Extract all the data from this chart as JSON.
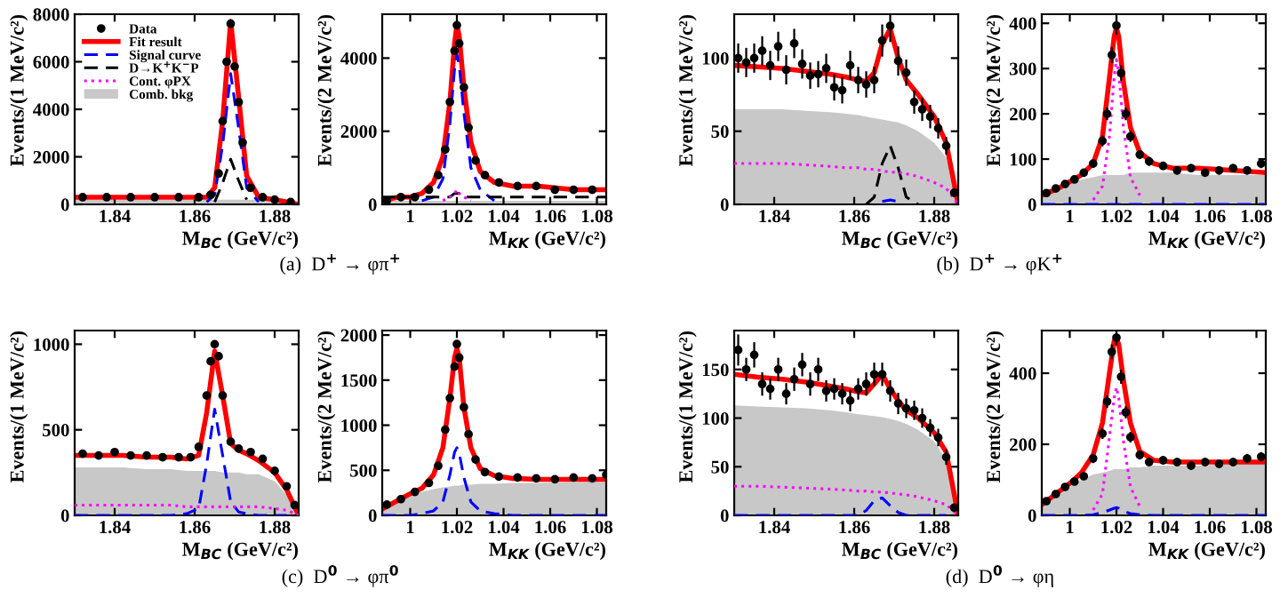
{
  "chart_data": [
    {
      "type": "line",
      "xlabel": "M$_{BC}$ (GeV/c²)",
      "ylabel": "Events/(1 MeV/c²)",
      "xlim": [
        1.83,
        1.886
      ],
      "xticks": [
        1.84,
        1.86,
        1.88
      ],
      "ylim": [
        0,
        8000
      ],
      "yticks": [
        0,
        2000,
        4000,
        6000,
        8000
      ],
      "legend": "top left",
      "annotations": [
        "(a)  D$^{+}$ → φπ$^{+}$"
      ],
      "x": [
        1.83,
        1.836,
        1.842,
        1.848,
        1.854,
        1.858,
        1.861,
        1.863,
        1.865,
        1.867,
        1.869,
        1.871,
        1.873,
        1.876,
        1.88,
        1.883,
        1.886
      ],
      "series": [
        {
          "name": "Data",
          "type": "scatter",
          "marker": "circle",
          "color": "#000000",
          "x": [
            1.832,
            1.838,
            1.844,
            1.85,
            1.856,
            1.861,
            1.864,
            1.866,
            1.867,
            1.868,
            1.869,
            1.87,
            1.871,
            1.872,
            1.874,
            1.877,
            1.88,
            1.884
          ],
          "values": [
            300,
            300,
            300,
            300,
            300,
            300,
            400,
            1300,
            3500,
            6000,
            7600,
            5800,
            4300,
            2600,
            700,
            300,
            200,
            100
          ]
        },
        {
          "name": "Fit result",
          "color": "#ff0000",
          "line_style": "solid",
          "values": [
            300,
            300,
            300,
            300,
            300,
            300,
            300,
            300,
            700,
            3500,
            7700,
            4500,
            1200,
            300,
            200,
            100,
            0
          ]
        },
        {
          "name": "Signal curve",
          "color": "#0000ff",
          "line_style": "dashed",
          "values": [
            null,
            null,
            null,
            null,
            null,
            null,
            null,
            100,
            400,
            2500,
            5500,
            3200,
            700,
            100,
            null,
            null,
            null
          ]
        },
        {
          "name": "D→K$^{+}$K$^{−}$P",
          "color": "#000000",
          "line_style": "dashed",
          "values": [
            null,
            null,
            null,
            null,
            null,
            null,
            null,
            null,
            100,
            900,
            1900,
            1000,
            200,
            null,
            null,
            null,
            null
          ]
        },
        {
          "name": "Cont. φPX",
          "color": "#ff00ff",
          "line_style": "dotted",
          "values": [
            null,
            null,
            null,
            null,
            null,
            null,
            null,
            null,
            null,
            null,
            null,
            null,
            null,
            null,
            null,
            null,
            null
          ]
        },
        {
          "name": "Comb. bkg",
          "type": "area",
          "color": "#c8c8c8",
          "values": [
            200,
            200,
            200,
            200,
            200,
            200,
            200,
            200,
            200,
            200,
            200,
            200,
            200,
            200,
            100,
            100,
            0
          ]
        }
      ]
    },
    {
      "type": "line",
      "xlabel": "M$_{KK}$ (GeV/c²)",
      "ylabel": "Events/(2 MeV/c²)",
      "xlim": [
        0.988,
        1.084
      ],
      "xticks": [
        1,
        1.02,
        1.04,
        1.06,
        1.08
      ],
      "ylim": [
        0,
        5200
      ],
      "yticks": [
        0,
        2000,
        4000
      ],
      "x": [
        0.988,
        0.995,
        1.0,
        1.005,
        1.01,
        1.014,
        1.017,
        1.019,
        1.02,
        1.021,
        1.023,
        1.026,
        1.03,
        1.036,
        1.044,
        1.055,
        1.07,
        1.084
      ],
      "series": [
        {
          "type": "scatter",
          "marker": "circle",
          "color": "#000000",
          "x": [
            0.99,
            0.996,
            1.002,
            1.008,
            1.012,
            1.015,
            1.017,
            1.019,
            1.02,
            1.021,
            1.023,
            1.025,
            1.028,
            1.032,
            1.038,
            1.046,
            1.054,
            1.062,
            1.07,
            1.078
          ],
          "values": [
            100,
            200,
            200,
            400,
            800,
            1500,
            2800,
            4200,
            4900,
            4400,
            3200,
            2100,
            1200,
            800,
            600,
            500,
            500,
            400,
            400,
            400
          ]
        },
        {
          "color": "#ff0000",
          "line_style": "solid",
          "values": [
            100,
            200,
            200,
            300,
            600,
            1300,
            2800,
            4400,
            4900,
            4600,
            3200,
            1700,
            900,
            600,
            500,
            500,
            400,
            400
          ]
        },
        {
          "color": "#0000ff",
          "line_style": "dashed",
          "values": [
            null,
            null,
            null,
            100,
            200,
            700,
            2200,
            3700,
            4100,
            3800,
            2500,
            1000,
            400,
            100,
            null,
            null,
            null,
            null
          ]
        },
        {
          "color": "#000000",
          "line_style": "dashed",
          "values": [
            200,
            200,
            200,
            200,
            200,
            200,
            200,
            300,
            300,
            300,
            200,
            200,
            200,
            200,
            200,
            200,
            200,
            200
          ]
        },
        {
          "color": "#ff00ff",
          "line_style": "dotted",
          "values": [
            null,
            null,
            null,
            null,
            null,
            100,
            200,
            300,
            400,
            300,
            200,
            100,
            null,
            null,
            null,
            null,
            null,
            null
          ]
        },
        {
          "type": "area",
          "color": "#c8c8c8",
          "values": [
            100,
            100,
            100,
            100,
            100,
            100,
            100,
            100,
            100,
            100,
            100,
            100,
            100,
            100,
            100,
            100,
            100,
            100
          ]
        }
      ]
    },
    {
      "type": "line",
      "xlabel": "M$_{BC}$ (GeV/c²)",
      "ylabel": "Events/(1 MeV/c²)",
      "xlim": [
        1.83,
        1.886
      ],
      "xticks": [
        1.84,
        1.86,
        1.88
      ],
      "ylim": [
        0,
        130
      ],
      "yticks": [
        0,
        50,
        100
      ],
      "annotations": [
        "(b)  D$^{+}$ → φK$^{+}$"
      ],
      "x": [
        1.83,
        1.836,
        1.842,
        1.848,
        1.854,
        1.858,
        1.861,
        1.863,
        1.865,
        1.867,
        1.869,
        1.871,
        1.873,
        1.876,
        1.88,
        1.883,
        1.886
      ],
      "series": [
        {
          "type": "scatter",
          "marker": "circle",
          "color": "#000000",
          "x": [
            1.831,
            1.833,
            1.835,
            1.837,
            1.839,
            1.841,
            1.843,
            1.845,
            1.847,
            1.849,
            1.851,
            1.853,
            1.855,
            1.857,
            1.859,
            1.861,
            1.863,
            1.865,
            1.867,
            1.869,
            1.871,
            1.873,
            1.875,
            1.877,
            1.879,
            1.881,
            1.883,
            1.885
          ],
          "values": [
            100,
            97,
            100,
            105,
            95,
            108,
            92,
            110,
            96,
            88,
            89,
            93,
            80,
            78,
            95,
            85,
            82,
            85,
            112,
            122,
            98,
            90,
            70,
            65,
            60,
            52,
            40,
            8
          ],
          "errors": [
            10,
            10,
            10,
            10,
            10,
            10,
            10,
            10,
            10,
            9,
            9,
            10,
            9,
            9,
            10,
            9,
            9,
            9,
            11,
            11,
            10,
            9,
            8,
            8,
            8,
            7,
            6,
            3
          ]
        },
        {
          "color": "#ff0000",
          "line_style": "solid",
          "values": [
            95,
            94,
            93,
            91,
            89,
            87,
            85,
            84,
            90,
            110,
            120,
            100,
            85,
            75,
            60,
            42,
            0
          ]
        },
        {
          "color": "#0000ff",
          "line_style": "dashed",
          "values": [
            null,
            null,
            null,
            null,
            null,
            null,
            null,
            null,
            null,
            2,
            3,
            2,
            null,
            null,
            null,
            null,
            null
          ]
        },
        {
          "color": "#000000",
          "line_style": "dashed",
          "values": [
            null,
            null,
            null,
            null,
            null,
            null,
            null,
            0,
            5,
            28,
            40,
            25,
            5,
            0,
            null,
            null,
            null
          ]
        },
        {
          "color": "#ff00ff",
          "line_style": "dotted",
          "values": [
            28,
            28,
            28,
            27,
            26,
            25,
            25,
            24,
            24,
            23,
            22,
            22,
            21,
            19,
            15,
            11,
            0
          ]
        },
        {
          "type": "area",
          "color": "#c8c8c8",
          "values": [
            65,
            65,
            65,
            64,
            63,
            62,
            61,
            60,
            59,
            58,
            57,
            56,
            54,
            50,
            42,
            32,
            0
          ]
        }
      ]
    },
    {
      "type": "line",
      "xlabel": "M$_{KK}$ (GeV/c²)",
      "ylabel": "Events/(2 MeV/c²)",
      "xlim": [
        0.988,
        1.084
      ],
      "xticks": [
        1,
        1.02,
        1.04,
        1.06,
        1.08
      ],
      "ylim": [
        0,
        420
      ],
      "yticks": [
        0,
        100,
        200,
        300,
        400
      ],
      "x": [
        0.988,
        0.995,
        1.0,
        1.005,
        1.01,
        1.014,
        1.017,
        1.019,
        1.02,
        1.021,
        1.023,
        1.026,
        1.03,
        1.036,
        1.044,
        1.055,
        1.07,
        1.084
      ],
      "series": [
        {
          "type": "scatter",
          "marker": "circle",
          "color": "#000000",
          "x": [
            0.99,
            0.994,
            0.998,
            1.002,
            1.006,
            1.01,
            1.014,
            1.016,
            1.018,
            1.02,
            1.022,
            1.024,
            1.026,
            1.03,
            1.034,
            1.04,
            1.046,
            1.052,
            1.058,
            1.064,
            1.07,
            1.076,
            1.082
          ],
          "values": [
            25,
            35,
            45,
            55,
            70,
            90,
            140,
            200,
            330,
            395,
            290,
            200,
            150,
            110,
            95,
            85,
            75,
            80,
            70,
            75,
            80,
            75,
            90
          ],
          "errors": [
            5,
            6,
            7,
            7,
            8,
            9,
            12,
            14,
            18,
            20,
            17,
            14,
            12,
            10,
            10,
            9,
            9,
            9,
            8,
            9,
            9,
            9,
            10
          ]
        },
        {
          "color": "#ff0000",
          "line_style": "solid",
          "values": [
            20,
            35,
            50,
            65,
            90,
            150,
            280,
            370,
            390,
            370,
            270,
            170,
            115,
            90,
            80,
            80,
            75,
            70
          ]
        },
        {
          "color": "#0000ff",
          "line_style": "dashed",
          "values": [
            0,
            0,
            0,
            0,
            0,
            0,
            0,
            0,
            0,
            0,
            0,
            0,
            0,
            0,
            0,
            0,
            0,
            0
          ]
        },
        {
          "color": "#ff00ff",
          "line_style": "dotted",
          "values": [
            null,
            null,
            null,
            null,
            10,
            40,
            150,
            280,
            320,
            290,
            170,
            60,
            20,
            null,
            null,
            null,
            null,
            null
          ]
        },
        {
          "type": "area",
          "color": "#c8c8c8",
          "values": [
            15,
            30,
            45,
            55,
            60,
            65,
            65,
            65,
            65,
            65,
            65,
            70,
            70,
            70,
            70,
            65,
            65,
            65
          ]
        }
      ]
    },
    {
      "type": "line",
      "xlabel": "M$_{BC}$ (GeV/c²)",
      "ylabel": "Events/(1 MeV/c²)",
      "xlim": [
        1.83,
        1.886
      ],
      "xticks": [
        1.84,
        1.86,
        1.88
      ],
      "ylim": [
        0,
        1080
      ],
      "yticks": [
        0,
        500,
        1000
      ],
      "annotations": [
        "(c)  D$^{0}$ → φπ$^{0}$"
      ],
      "x": [
        1.83,
        1.836,
        1.842,
        1.848,
        1.854,
        1.858,
        1.861,
        1.863,
        1.865,
        1.867,
        1.869,
        1.871,
        1.873,
        1.876,
        1.88,
        1.883,
        1.886
      ],
      "series": [
        {
          "type": "scatter",
          "marker": "circle",
          "color": "#000000",
          "x": [
            1.832,
            1.836,
            1.84,
            1.844,
            1.848,
            1.852,
            1.856,
            1.859,
            1.861,
            1.863,
            1.864,
            1.865,
            1.866,
            1.867,
            1.869,
            1.871,
            1.874,
            1.877,
            1.88,
            1.883,
            1.885
          ],
          "values": [
            360,
            350,
            370,
            350,
            350,
            340,
            340,
            340,
            400,
            700,
            900,
            1000,
            930,
            700,
            430,
            390,
            370,
            330,
            260,
            170,
            60
          ]
        },
        {
          "color": "#ff0000",
          "line_style": "solid",
          "values": [
            350,
            350,
            350,
            340,
            340,
            330,
            350,
            600,
            960,
            700,
            420,
            380,
            360,
            320,
            250,
            150,
            0
          ]
        },
        {
          "color": "#0000ff",
          "line_style": "dashed",
          "values": [
            0,
            0,
            0,
            0,
            0,
            10,
            40,
            300,
            620,
            350,
            80,
            20,
            10,
            0,
            0,
            0,
            null
          ]
        },
        {
          "color": "#ff00ff",
          "line_style": "dotted",
          "values": [
            60,
            60,
            60,
            60,
            60,
            50,
            50,
            50,
            50,
            50,
            50,
            50,
            50,
            50,
            40,
            30,
            0
          ]
        },
        {
          "type": "area",
          "color": "#c8c8c8",
          "values": [
            280,
            280,
            280,
            270,
            270,
            260,
            260,
            260,
            260,
            250,
            250,
            250,
            240,
            240,
            200,
            120,
            0
          ]
        }
      ]
    },
    {
      "type": "line",
      "xlabel": "M$_{KK}$ (GeV/c²)",
      "ylabel": "Events/(2 MeV/c²)",
      "xlim": [
        0.988,
        1.084
      ],
      "xticks": [
        1,
        1.02,
        1.04,
        1.06,
        1.08
      ],
      "ylim": [
        0,
        2050
      ],
      "yticks": [
        0,
        500,
        1000,
        1500,
        2000
      ],
      "x": [
        0.988,
        0.995,
        1.0,
        1.005,
        1.01,
        1.014,
        1.017,
        1.019,
        1.02,
        1.021,
        1.023,
        1.026,
        1.03,
        1.036,
        1.044,
        1.055,
        1.07,
        1.084
      ],
      "series": [
        {
          "type": "scatter",
          "marker": "circle",
          "color": "#000000",
          "x": [
            0.99,
            0.996,
            1.002,
            1.008,
            1.012,
            1.015,
            1.017,
            1.019,
            1.02,
            1.021,
            1.023,
            1.025,
            1.028,
            1.032,
            1.038,
            1.046,
            1.054,
            1.062,
            1.07,
            1.078,
            1.084
          ],
          "values": [
            120,
            180,
            260,
            360,
            550,
            950,
            1300,
            1650,
            1900,
            1750,
            1200,
            900,
            620,
            480,
            430,
            420,
            410,
            400,
            420,
            410,
            450
          ]
        },
        {
          "color": "#ff0000",
          "line_style": "solid",
          "values": [
            70,
            170,
            240,
            300,
            450,
            750,
            1300,
            1750,
            1850,
            1750,
            1200,
            750,
            520,
            440,
            410,
            400,
            400,
            400
          ]
        },
        {
          "color": "#0000ff",
          "line_style": "dashed",
          "values": [
            0,
            0,
            0,
            20,
            50,
            150,
            450,
            700,
            750,
            690,
            420,
            150,
            50,
            20,
            0,
            0,
            0,
            0
          ]
        },
        {
          "type": "area",
          "color": "#c8c8c8",
          "values": [
            60,
            160,
            220,
            260,
            290,
            310,
            320,
            330,
            330,
            330,
            340,
            340,
            350,
            350,
            360,
            360,
            370,
            370
          ]
        }
      ]
    },
    {
      "type": "line",
      "xlabel": "M$_{BC}$ (GeV/c²)",
      "ylabel": "Events/(1 MeV/c²)",
      "xlim": [
        1.83,
        1.886
      ],
      "xticks": [
        1.84,
        1.86,
        1.88
      ],
      "ylim": [
        0,
        190
      ],
      "yticks": [
        0,
        50,
        100,
        150
      ],
      "annotations": [
        "(d)  D$^{0}$ → φη"
      ],
      "x": [
        1.83,
        1.836,
        1.842,
        1.848,
        1.854,
        1.858,
        1.861,
        1.863,
        1.865,
        1.867,
        1.869,
        1.871,
        1.873,
        1.876,
        1.88,
        1.883,
        1.886
      ],
      "series": [
        {
          "type": "scatter",
          "marker": "circle",
          "color": "#000000",
          "x": [
            1.831,
            1.833,
            1.835,
            1.837,
            1.839,
            1.841,
            1.843,
            1.845,
            1.847,
            1.849,
            1.851,
            1.853,
            1.855,
            1.857,
            1.859,
            1.861,
            1.863,
            1.865,
            1.867,
            1.869,
            1.871,
            1.873,
            1.875,
            1.877,
            1.879,
            1.881,
            1.883,
            1.885
          ],
          "values": [
            170,
            150,
            165,
            135,
            130,
            150,
            125,
            140,
            155,
            135,
            150,
            128,
            130,
            125,
            118,
            130,
            135,
            145,
            145,
            128,
            115,
            110,
            108,
            100,
            90,
            80,
            60,
            8
          ],
          "errors": [
            16,
            12,
            13,
            12,
            11,
            12,
            11,
            12,
            12,
            12,
            12,
            11,
            11,
            11,
            11,
            11,
            12,
            12,
            12,
            11,
            11,
            10,
            10,
            10,
            9,
            9,
            8,
            3
          ]
        },
        {
          "color": "#ff0000",
          "line_style": "solid",
          "values": [
            145,
            142,
            140,
            137,
            133,
            130,
            127,
            126,
            135,
            145,
            130,
            118,
            108,
            100,
            85,
            65,
            0
          ]
        },
        {
          "color": "#0000ff",
          "line_style": "dashed",
          "values": [
            0,
            0,
            0,
            0,
            0,
            0,
            0,
            5,
            15,
            18,
            10,
            3,
            0,
            0,
            0,
            0,
            null
          ]
        },
        {
          "color": "#ff00ff",
          "line_style": "dotted",
          "values": [
            30,
            30,
            29,
            28,
            27,
            26,
            25,
            25,
            24,
            24,
            23,
            22,
            21,
            19,
            15,
            11,
            0
          ]
        },
        {
          "type": "area",
          "color": "#c8c8c8",
          "values": [
            113,
            112,
            111,
            110,
            108,
            106,
            104,
            103,
            102,
            101,
            99,
            97,
            94,
            88,
            76,
            57,
            0
          ]
        }
      ]
    },
    {
      "type": "line",
      "xlabel": "M$_{KK}$ (GeV/c²)",
      "ylabel": "Events/(2 MeV/c²)",
      "xlim": [
        0.988,
        1.084
      ],
      "xticks": [
        1,
        1.02,
        1.04,
        1.06,
        1.08
      ],
      "ylim": [
        0,
        520
      ],
      "yticks": [
        0,
        200,
        400
      ],
      "x": [
        0.988,
        0.995,
        1.0,
        1.005,
        1.01,
        1.014,
        1.017,
        1.019,
        1.02,
        1.021,
        1.023,
        1.026,
        1.03,
        1.036,
        1.044,
        1.055,
        1.07,
        1.084
      ],
      "series": [
        {
          "type": "scatter",
          "marker": "circle",
          "color": "#000000",
          "x": [
            0.99,
            0.994,
            0.998,
            1.002,
            1.006,
            1.01,
            1.014,
            1.016,
            1.018,
            1.02,
            1.022,
            1.024,
            1.026,
            1.03,
            1.034,
            1.04,
            1.046,
            1.052,
            1.058,
            1.064,
            1.07,
            1.076,
            1.082
          ],
          "values": [
            40,
            60,
            80,
            95,
            110,
            160,
            230,
            320,
            460,
            500,
            390,
            290,
            220,
            170,
            150,
            155,
            150,
            140,
            150,
            145,
            150,
            160,
            165
          ],
          "errors": [
            6,
            8,
            9,
            10,
            10,
            13,
            15,
            18,
            21,
            22,
            20,
            17,
            15,
            13,
            12,
            12,
            12,
            12,
            12,
            12,
            12,
            13,
            13
          ]
        },
        {
          "color": "#ff0000",
          "line_style": "solid",
          "values": [
            30,
            65,
            90,
            120,
            170,
            260,
            400,
            490,
            500,
            480,
            380,
            260,
            180,
            155,
            150,
            150,
            150,
            150
          ]
        },
        {
          "color": "#0000ff",
          "line_style": "dashed",
          "values": [
            0,
            0,
            0,
            0,
            2,
            8,
            15,
            20,
            22,
            20,
            12,
            5,
            2,
            0,
            0,
            0,
            0,
            0
          ]
        },
        {
          "color": "#ff00ff",
          "line_style": "dotted",
          "values": [
            null,
            null,
            null,
            null,
            15,
            60,
            220,
            330,
            360,
            330,
            210,
            80,
            25,
            null,
            null,
            null,
            null,
            null
          ]
        },
        {
          "type": "area",
          "color": "#c8c8c8",
          "values": [
            25,
            55,
            80,
            100,
            115,
            120,
            125,
            130,
            130,
            130,
            130,
            135,
            135,
            140,
            140,
            140,
            145,
            145
          ]
        }
      ]
    }
  ]
}
